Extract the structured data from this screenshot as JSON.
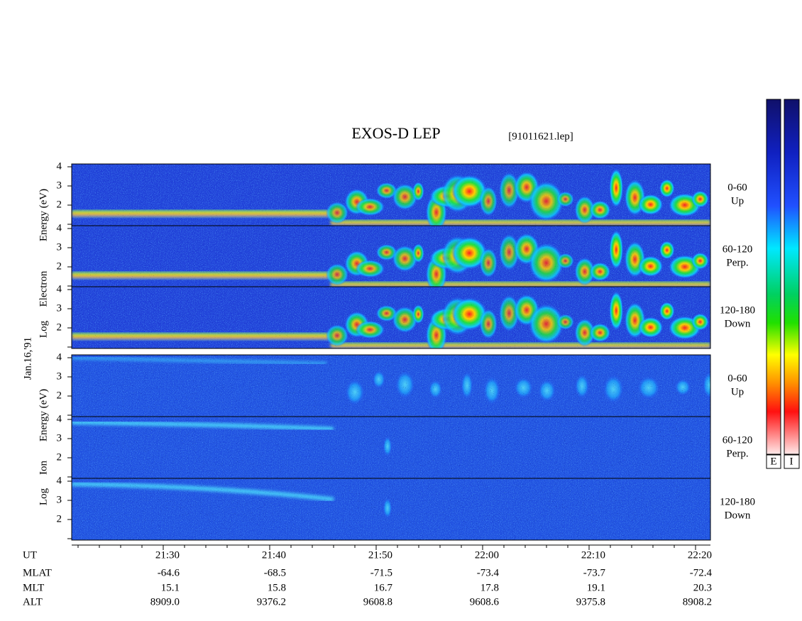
{
  "title": "EXOS-D LEP",
  "file": "[91011621.lep]",
  "date": "Jan.16,'91",
  "electron": {
    "ylabel": [
      "Log",
      "Electron",
      "Energy (eV)"
    ]
  },
  "ion": {
    "ylabel": [
      "Log",
      "Ion",
      "Energy (eV)"
    ]
  },
  "panel_labels": [
    {
      "range": "0-60",
      "direction": "Up"
    },
    {
      "range": "60-120",
      "direction": "Perp."
    },
    {
      "range": "120-180",
      "direction": "Down"
    }
  ],
  "yticks": [
    2,
    3,
    4
  ],
  "colorbar_labels": [
    "E",
    "I"
  ],
  "footer": {
    "row_labels": [
      "UT",
      "MLAT",
      "MLT",
      "ALT"
    ],
    "columns": [
      [
        "21:30",
        "-64.6",
        "15.1",
        "8909.0"
      ],
      [
        "21:40",
        "-68.5",
        "15.8",
        "9376.2"
      ],
      [
        "21:50",
        "-71.5",
        "16.7",
        "9608.8"
      ],
      [
        "22:00",
        "-73.4",
        "17.8",
        "9608.6"
      ],
      [
        "22:10",
        "-73.7",
        "19.1",
        "9375.8"
      ],
      [
        "22:20",
        "-72.4",
        "20.3",
        "8908.2"
      ]
    ]
  }
}
